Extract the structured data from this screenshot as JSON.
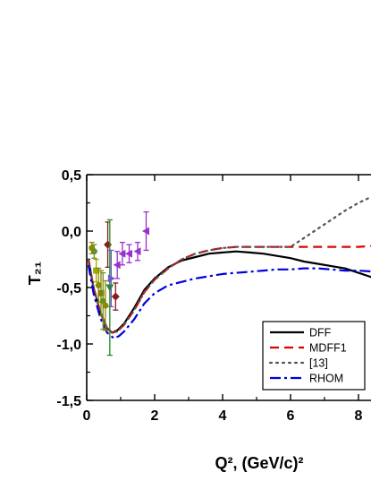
{
  "chart_data": {
    "type": "line",
    "xlabel": "Q², (GeV/c)²",
    "ylabel": "T₂₁",
    "xlim": [
      0,
      8.5
    ],
    "ylim": [
      -1.5,
      0.5
    ],
    "xticks": [
      0,
      2,
      4,
      6,
      8
    ],
    "yticks": [
      -1.5,
      -1.0,
      -0.5,
      0.0,
      0.5
    ],
    "xtick_labels": [
      "0",
      "2",
      "4",
      "6",
      "8"
    ],
    "ytick_labels": [
      "-1,5",
      "-1,0",
      "-0,5",
      "0,0",
      "0,5"
    ],
    "legend_position": "bottom-right",
    "series": [
      {
        "name": "DFF",
        "style": "solid",
        "color": "#000000",
        "x": [
          0.05,
          0.2,
          0.4,
          0.6,
          0.75,
          0.9,
          1.1,
          1.4,
          1.7,
          2.0,
          2.4,
          2.8,
          3.2,
          3.6,
          4.0,
          4.4,
          4.8,
          5.2,
          5.6,
          6.0,
          6.4,
          6.8,
          7.2,
          7.6,
          8.0,
          8.5
        ],
        "y": [
          -0.25,
          -0.5,
          -0.72,
          -0.86,
          -0.9,
          -0.88,
          -0.82,
          -0.68,
          -0.52,
          -0.42,
          -0.32,
          -0.26,
          -0.23,
          -0.2,
          -0.19,
          -0.18,
          -0.19,
          -0.2,
          -0.22,
          -0.24,
          -0.27,
          -0.29,
          -0.31,
          -0.33,
          -0.37,
          -0.42
        ]
      },
      {
        "name": "MDFF1",
        "style": "dashed",
        "color": "#e00000",
        "x": [
          0.05,
          0.2,
          0.4,
          0.6,
          0.75,
          0.9,
          1.1,
          1.4,
          1.7,
          2.0,
          2.4,
          2.8,
          3.2,
          3.6,
          4.0,
          4.4,
          4.8,
          5.2,
          5.6,
          6.0,
          6.4,
          6.8,
          7.2,
          7.6,
          8.0,
          8.5
        ],
        "y": [
          -0.25,
          -0.5,
          -0.72,
          -0.86,
          -0.9,
          -0.89,
          -0.83,
          -0.7,
          -0.54,
          -0.43,
          -0.33,
          -0.25,
          -0.2,
          -0.17,
          -0.15,
          -0.14,
          -0.14,
          -0.14,
          -0.14,
          -0.14,
          -0.14,
          -0.14,
          -0.14,
          -0.14,
          -0.14,
          -0.13
        ]
      },
      {
        "name": "[13]",
        "style": "dotted",
        "color": "#555555",
        "x": [
          0.05,
          0.2,
          0.4,
          0.6,
          0.75,
          0.9,
          1.1,
          1.4,
          1.7,
          2.0,
          2.4,
          2.8,
          3.2,
          3.6,
          4.0,
          4.4,
          4.8,
          5.2,
          5.6,
          6.0,
          6.4,
          6.8,
          7.2,
          7.6,
          8.0,
          8.5
        ],
        "y": [
          -0.25,
          -0.5,
          -0.72,
          -0.86,
          -0.9,
          -0.89,
          -0.83,
          -0.7,
          -0.54,
          -0.43,
          -0.33,
          -0.25,
          -0.2,
          -0.17,
          -0.15,
          -0.14,
          -0.14,
          -0.14,
          -0.14,
          -0.14,
          -0.06,
          0.02,
          0.1,
          0.18,
          0.25,
          0.32
        ]
      },
      {
        "name": "RHOM",
        "style": "dash-dot",
        "color": "#0000e0",
        "x": [
          0.05,
          0.2,
          0.4,
          0.6,
          0.8,
          0.95,
          1.1,
          1.4,
          1.7,
          2.0,
          2.4,
          2.8,
          3.2,
          3.6,
          4.0,
          4.4,
          4.8,
          5.2,
          5.6,
          6.0,
          6.4,
          6.8,
          7.2,
          7.6,
          8.0,
          8.5
        ],
        "y": [
          -0.3,
          -0.55,
          -0.77,
          -0.9,
          -0.95,
          -0.93,
          -0.89,
          -0.78,
          -0.64,
          -0.55,
          -0.48,
          -0.45,
          -0.42,
          -0.4,
          -0.38,
          -0.37,
          -0.36,
          -0.35,
          -0.34,
          -0.34,
          -0.33,
          -0.33,
          -0.34,
          -0.35,
          -0.35,
          -0.36
        ]
      }
    ],
    "data_points": [
      {
        "x": 0.15,
        "y": -0.15,
        "err": 0.05,
        "color": "#8b8b00",
        "marker": "circle"
      },
      {
        "x": 0.22,
        "y": -0.18,
        "err": 0.06,
        "color": "#6b8e23",
        "marker": "circle"
      },
      {
        "x": 0.28,
        "y": -0.35,
        "err": 0.1,
        "color": "#9aaa00",
        "marker": "square"
      },
      {
        "x": 0.35,
        "y": -0.48,
        "err": 0.15,
        "color": "#8b8b00",
        "marker": "circle"
      },
      {
        "x": 0.42,
        "y": -0.55,
        "err": 0.2,
        "color": "#808000",
        "marker": "square"
      },
      {
        "x": 0.48,
        "y": -0.62,
        "err": 0.25,
        "color": "#6b8e23",
        "marker": "circle"
      },
      {
        "x": 0.55,
        "y": -0.66,
        "err": 0.22,
        "color": "#8b8b00",
        "marker": "circle"
      },
      {
        "x": 0.62,
        "y": -0.12,
        "err": 0.2,
        "color": "#8b1a1a",
        "marker": "diamond"
      },
      {
        "x": 0.68,
        "y": -0.5,
        "err": 0.6,
        "color": "#228b22",
        "marker": "triangle-down"
      },
      {
        "x": 0.72,
        "y": -0.42,
        "err": 0.25,
        "color": "#6a5acd",
        "marker": "triangle-right"
      },
      {
        "x": 0.85,
        "y": -0.58,
        "err": 0.12,
        "color": "#8b1a1a",
        "marker": "diamond"
      },
      {
        "x": 0.9,
        "y": -0.3,
        "err": 0.12,
        "color": "#9932cc",
        "marker": "triangle-left"
      },
      {
        "x": 1.05,
        "y": -0.2,
        "err": 0.1,
        "color": "#9932cc",
        "marker": "triangle-left"
      },
      {
        "x": 1.25,
        "y": -0.2,
        "err": 0.08,
        "color": "#9932cc",
        "marker": "triangle-left"
      },
      {
        "x": 1.5,
        "y": -0.18,
        "err": 0.08,
        "color": "#9932cc",
        "marker": "triangle-left"
      },
      {
        "x": 1.75,
        "y": 0.0,
        "err": 0.17,
        "color": "#9932cc",
        "marker": "triangle-left"
      }
    ]
  }
}
